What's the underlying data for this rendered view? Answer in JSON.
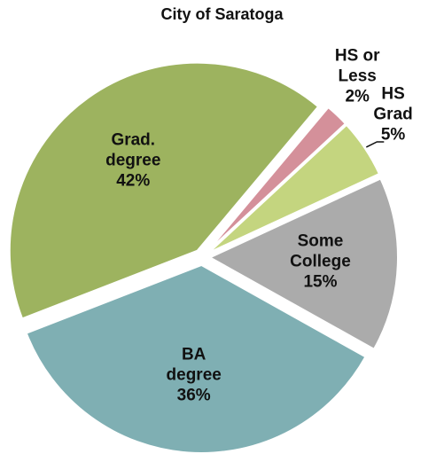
{
  "chart_data": {
    "type": "pie",
    "title": "City of Saratoga",
    "categories": [
      "HS or Less",
      "HS Grad",
      "Some College",
      "BA degree",
      "Grad. degree"
    ],
    "values": [
      2,
      5,
      15,
      36,
      42
    ],
    "value_labels": [
      "2%",
      "5%",
      "15%",
      "36%",
      "42%"
    ],
    "colors": [
      "#d4909a",
      "#c4d57f",
      "#ababab",
      "#7fafb3",
      "#9db35f"
    ]
  }
}
